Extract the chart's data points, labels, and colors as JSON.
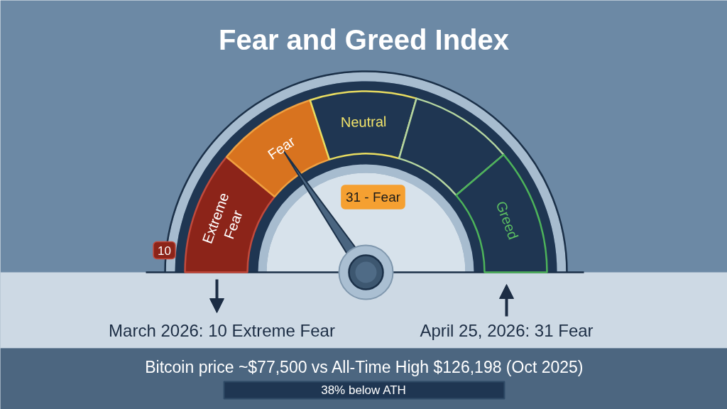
{
  "chart_data": {
    "type": "donut",
    "title": "Fear and Greed Index",
    "categories": [
      "Extreme Fear",
      "Fear",
      "Neutral",
      null,
      "Greed"
    ],
    "values": [
      22,
      18,
      19,
      18.5,
      22.5
    ],
    "colors": [
      "#8c2419",
      "#d8731f",
      "#1f3652",
      "#1f3652",
      "#1f3652"
    ],
    "needle": "Fear",
    "annotations": [
      "31 - Fear",
      "10",
      "March 2026: 10 Extreme Fear",
      "April 25, 2026: 31 Fear",
      "Bitcoin price ~$77,500 vs All-Time High $126,198 (Oct 2025)",
      "38% below ATH"
    ]
  }
}
